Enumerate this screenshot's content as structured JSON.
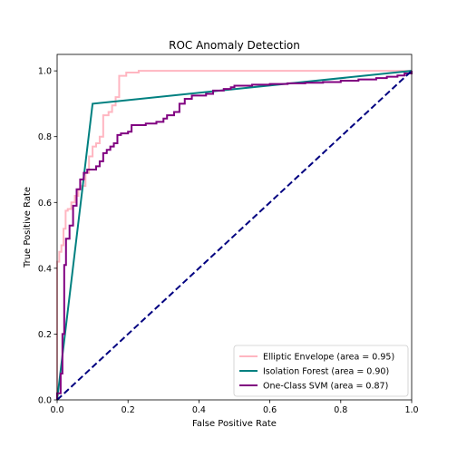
{
  "chart_data": {
    "type": "line",
    "title": "ROC Anomaly Detection",
    "xlabel": "False Positive Rate",
    "ylabel": "True Positive Rate",
    "xlim": [
      0.0,
      1.0
    ],
    "ylim": [
      0.0,
      1.05
    ],
    "xticks": [
      "0.0",
      "0.2",
      "0.4",
      "0.6",
      "0.8",
      "1.0"
    ],
    "yticks": [
      "0.0",
      "0.2",
      "0.4",
      "0.6",
      "0.8",
      "1.0"
    ],
    "grid": false,
    "legend_position": "lower-right",
    "series": [
      {
        "name": "Elliptic Envelope (area = 0.95)",
        "color": "#ffb6c1",
        "step": true,
        "x": [
          0.0,
          0.0,
          0.006,
          0.006,
          0.012,
          0.012,
          0.018,
          0.018,
          0.024,
          0.024,
          0.03,
          0.03,
          0.04,
          0.04,
          0.05,
          0.05,
          0.06,
          0.06,
          0.07,
          0.07,
          0.08,
          0.08,
          0.09,
          0.09,
          0.1,
          0.1,
          0.11,
          0.11,
          0.12,
          0.12,
          0.13,
          0.13,
          0.145,
          0.145,
          0.155,
          0.155,
          0.165,
          0.165,
          0.175,
          0.175,
          0.195,
          0.195,
          0.23,
          0.23,
          1.0
        ],
        "y": [
          0.0,
          0.42,
          0.42,
          0.45,
          0.45,
          0.47,
          0.47,
          0.52,
          0.52,
          0.575,
          0.575,
          0.58,
          0.58,
          0.6,
          0.6,
          0.62,
          0.62,
          0.64,
          0.64,
          0.65,
          0.65,
          0.69,
          0.69,
          0.74,
          0.74,
          0.77,
          0.77,
          0.78,
          0.78,
          0.8,
          0.8,
          0.865,
          0.865,
          0.875,
          0.875,
          0.895,
          0.895,
          0.92,
          0.92,
          0.985,
          0.985,
          0.995,
          0.995,
          1.0,
          1.0
        ]
      },
      {
        "name": "Isolation Forest (area = 0.90)",
        "color": "#008080",
        "step": false,
        "x": [
          0.0,
          0.1,
          1.0
        ],
        "y": [
          0.0,
          0.9,
          1.0
        ]
      },
      {
        "name": "One-Class SVM (area = 0.87)",
        "color": "#800080",
        "step": true,
        "x": [
          0.0,
          0.0,
          0.01,
          0.01,
          0.015,
          0.015,
          0.02,
          0.02,
          0.025,
          0.025,
          0.035,
          0.035,
          0.045,
          0.045,
          0.055,
          0.055,
          0.065,
          0.065,
          0.075,
          0.075,
          0.085,
          0.085,
          0.1,
          0.1,
          0.11,
          0.11,
          0.12,
          0.12,
          0.13,
          0.13,
          0.14,
          0.14,
          0.15,
          0.15,
          0.16,
          0.16,
          0.17,
          0.17,
          0.18,
          0.18,
          0.2,
          0.2,
          0.21,
          0.21,
          0.25,
          0.25,
          0.28,
          0.28,
          0.3,
          0.3,
          0.31,
          0.31,
          0.33,
          0.33,
          0.345,
          0.345,
          0.36,
          0.36,
          0.38,
          0.38,
          0.42,
          0.42,
          0.44,
          0.44,
          0.47,
          0.47,
          0.49,
          0.49,
          0.5,
          0.5,
          0.55,
          0.55,
          0.6,
          0.6,
          0.65,
          0.65,
          0.7,
          0.7,
          0.75,
          0.75,
          0.8,
          0.8,
          0.85,
          0.85,
          0.9,
          0.9,
          0.93,
          0.93,
          0.96,
          0.96,
          0.98,
          0.98,
          1.0,
          1.0
        ],
        "y": [
          0.0,
          0.02,
          0.02,
          0.08,
          0.08,
          0.2,
          0.2,
          0.41,
          0.41,
          0.49,
          0.49,
          0.53,
          0.53,
          0.59,
          0.59,
          0.64,
          0.64,
          0.67,
          0.67,
          0.69,
          0.69,
          0.7,
          0.7,
          0.7,
          0.7,
          0.71,
          0.71,
          0.725,
          0.725,
          0.75,
          0.75,
          0.76,
          0.76,
          0.77,
          0.77,
          0.78,
          0.78,
          0.805,
          0.805,
          0.81,
          0.81,
          0.815,
          0.815,
          0.835,
          0.835,
          0.84,
          0.84,
          0.845,
          0.845,
          0.855,
          0.855,
          0.865,
          0.865,
          0.875,
          0.875,
          0.9,
          0.9,
          0.915,
          0.915,
          0.925,
          0.925,
          0.93,
          0.93,
          0.94,
          0.94,
          0.945,
          0.945,
          0.95,
          0.95,
          0.955,
          0.955,
          0.958,
          0.958,
          0.96,
          0.96,
          0.962,
          0.962,
          0.964,
          0.964,
          0.966,
          0.966,
          0.97,
          0.97,
          0.974,
          0.974,
          0.978,
          0.978,
          0.982,
          0.982,
          0.986,
          0.986,
          0.992,
          0.992,
          1.0
        ]
      },
      {
        "name": "",
        "color": "#000080",
        "dashed": true,
        "step": false,
        "x": [
          0.0,
          1.0
        ],
        "y": [
          0.0,
          1.0
        ]
      }
    ]
  }
}
